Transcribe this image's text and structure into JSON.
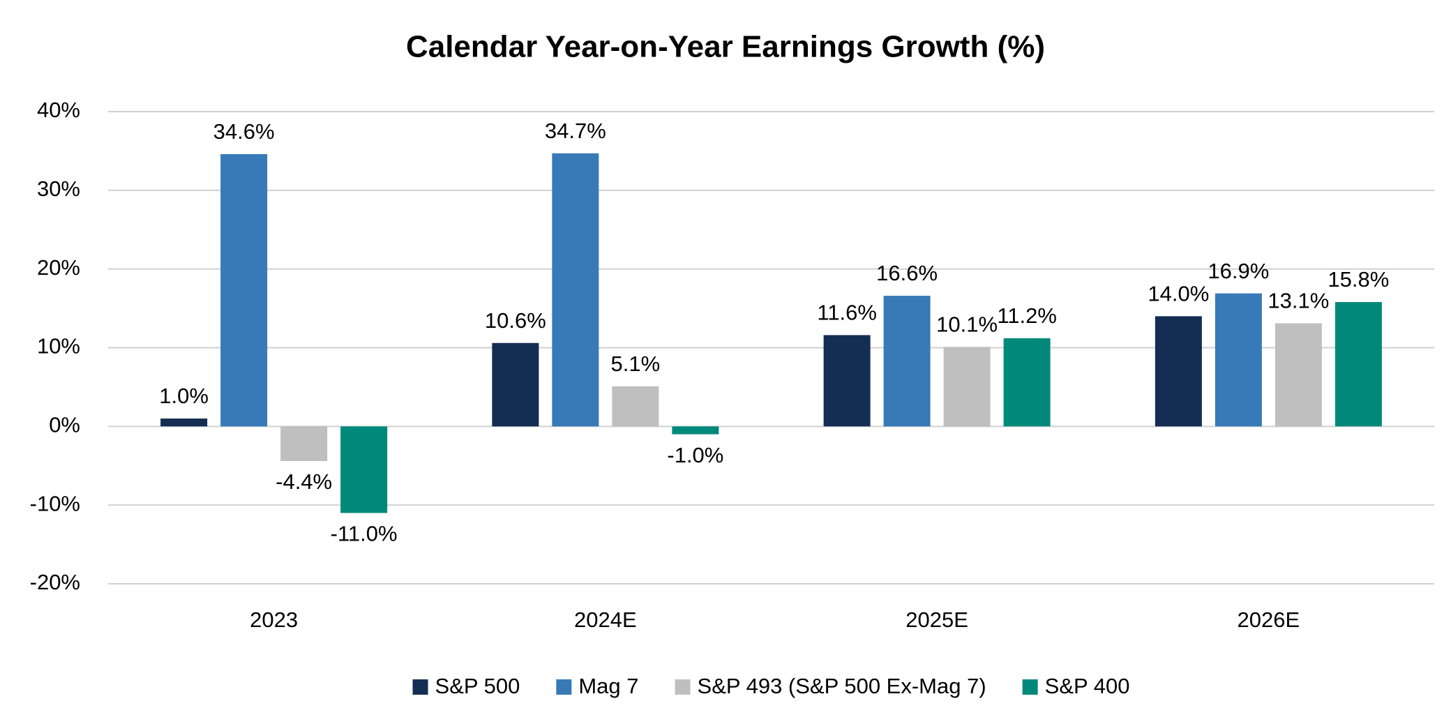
{
  "chart_data": {
    "type": "bar",
    "title": "Calendar Year-on-Year Earnings Growth (%)",
    "categories": [
      "2023",
      "2024E",
      "2025E",
      "2026E"
    ],
    "series": [
      {
        "name": "S&P 500",
        "color": "#142d52",
        "values": [
          1.0,
          10.6,
          11.6,
          14.0
        ],
        "value_labels": [
          "1.0%",
          "10.6%",
          "11.6%",
          "14.0%"
        ]
      },
      {
        "name": "Mag 7",
        "color": "#377ab7",
        "values": [
          34.6,
          34.7,
          16.6,
          16.9
        ],
        "value_labels": [
          "34.6%",
          "34.7%",
          "16.6%",
          "16.9%"
        ]
      },
      {
        "name": "S&P 493 (S&P 500 Ex-Mag 7)",
        "color": "#bfbfbf",
        "values": [
          -4.4,
          5.1,
          10.1,
          13.1
        ],
        "value_labels": [
          "-4.4%",
          "5.1%",
          "10.1%",
          "13.1%"
        ]
      },
      {
        "name": "S&P 400",
        "color": "#00897b",
        "values": [
          -11.0,
          -1.0,
          11.2,
          15.8
        ],
        "value_labels": [
          "-11.0%",
          "-1.0%",
          "11.2%",
          "15.8%"
        ]
      }
    ],
    "ylim": [
      -20,
      40
    ],
    "yticks": [
      {
        "value": -20,
        "label": "-20%"
      },
      {
        "value": -10,
        "label": "-10%"
      },
      {
        "value": 0,
        "label": "0%"
      },
      {
        "value": 10,
        "label": "10%"
      },
      {
        "value": 20,
        "label": "20%"
      },
      {
        "value": 30,
        "label": "30%"
      },
      {
        "value": 40,
        "label": "40%"
      }
    ],
    "grid": true,
    "legend": "bottom"
  }
}
